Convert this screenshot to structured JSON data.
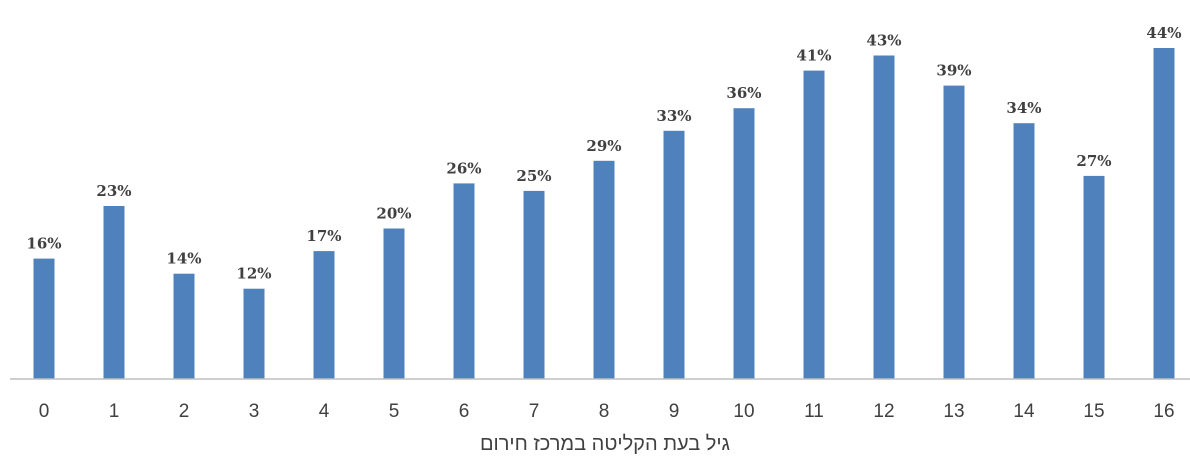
{
  "chart_data": {
    "type": "bar",
    "title": "",
    "xlabel": "גיל בעת הקליטה במרכז חירום",
    "ylabel": "",
    "categories": [
      "0",
      "1",
      "2",
      "3",
      "4",
      "5",
      "6",
      "7",
      "8",
      "9",
      "10",
      "11",
      "12",
      "13",
      "14",
      "15",
      "16"
    ],
    "values": [
      16,
      23,
      14,
      12,
      17,
      20,
      26,
      25,
      29,
      33,
      36,
      41,
      43,
      39,
      34,
      27,
      44
    ],
    "data_labels": [
      "16%",
      "23%",
      "14%",
      "12%",
      "17%",
      "20%",
      "26%",
      "25%",
      "29%",
      "33%",
      "36%",
      "41%",
      "43%",
      "39%",
      "34%",
      "27%",
      "44%"
    ],
    "ylim": [
      0,
      44
    ],
    "grid": false,
    "legend": "none",
    "bar_color": "#4f81bd"
  }
}
